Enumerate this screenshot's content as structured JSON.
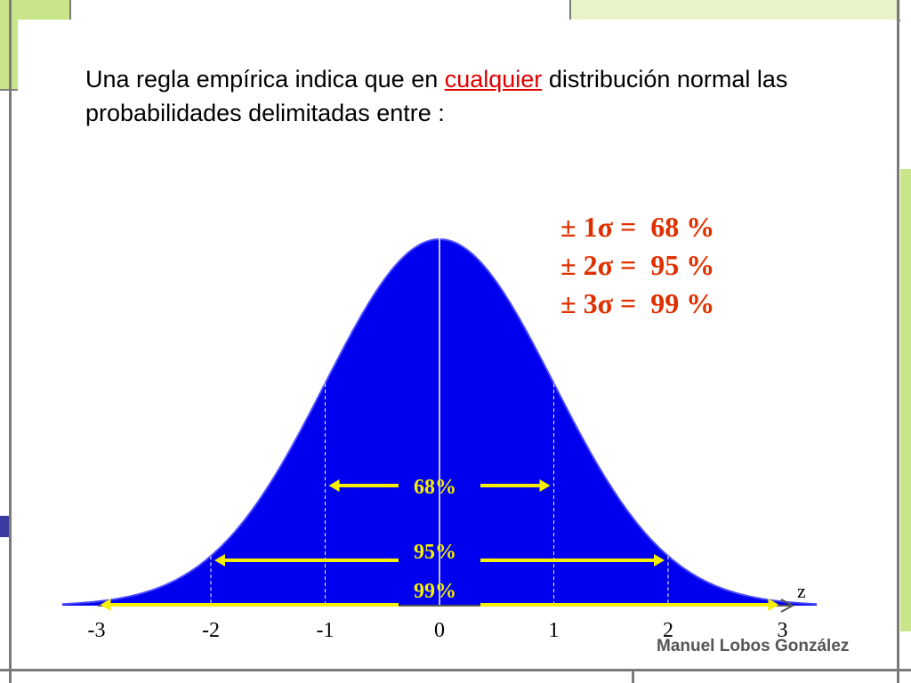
{
  "title": {
    "before": "Una regla empírica indica que en ",
    "highlight": "cualquier",
    "after": " distribución normal las  probabilidades delimitadas entre  :"
  },
  "sigma_rules": [
    {
      "label": "± 1σ =  68 %"
    },
    {
      "label": "± 2σ =  95 %"
    },
    {
      "label": "± 3σ =  99 %"
    }
  ],
  "chart": {
    "curve": "normal",
    "fill_color": "#0000ee",
    "arrow_color": "#f4f000",
    "z_label": "z",
    "z_ticks": [
      "-3",
      "-2",
      "-1",
      "0",
      "1",
      "2",
      "3"
    ],
    "z_values": [
      -3,
      -2,
      -1,
      0,
      1,
      2,
      3
    ],
    "bands": [
      {
        "label": "68%",
        "from": -1,
        "to": 1
      },
      {
        "label": "95%",
        "from": -2,
        "to": 2
      },
      {
        "label": "99%",
        "from": -3,
        "to": 3
      }
    ]
  },
  "author": "Manuel Lobos González",
  "colors": {
    "accent_red": "#e03000",
    "frame_green": "#b7df6a",
    "frame_gray": "#7a7a7a"
  }
}
